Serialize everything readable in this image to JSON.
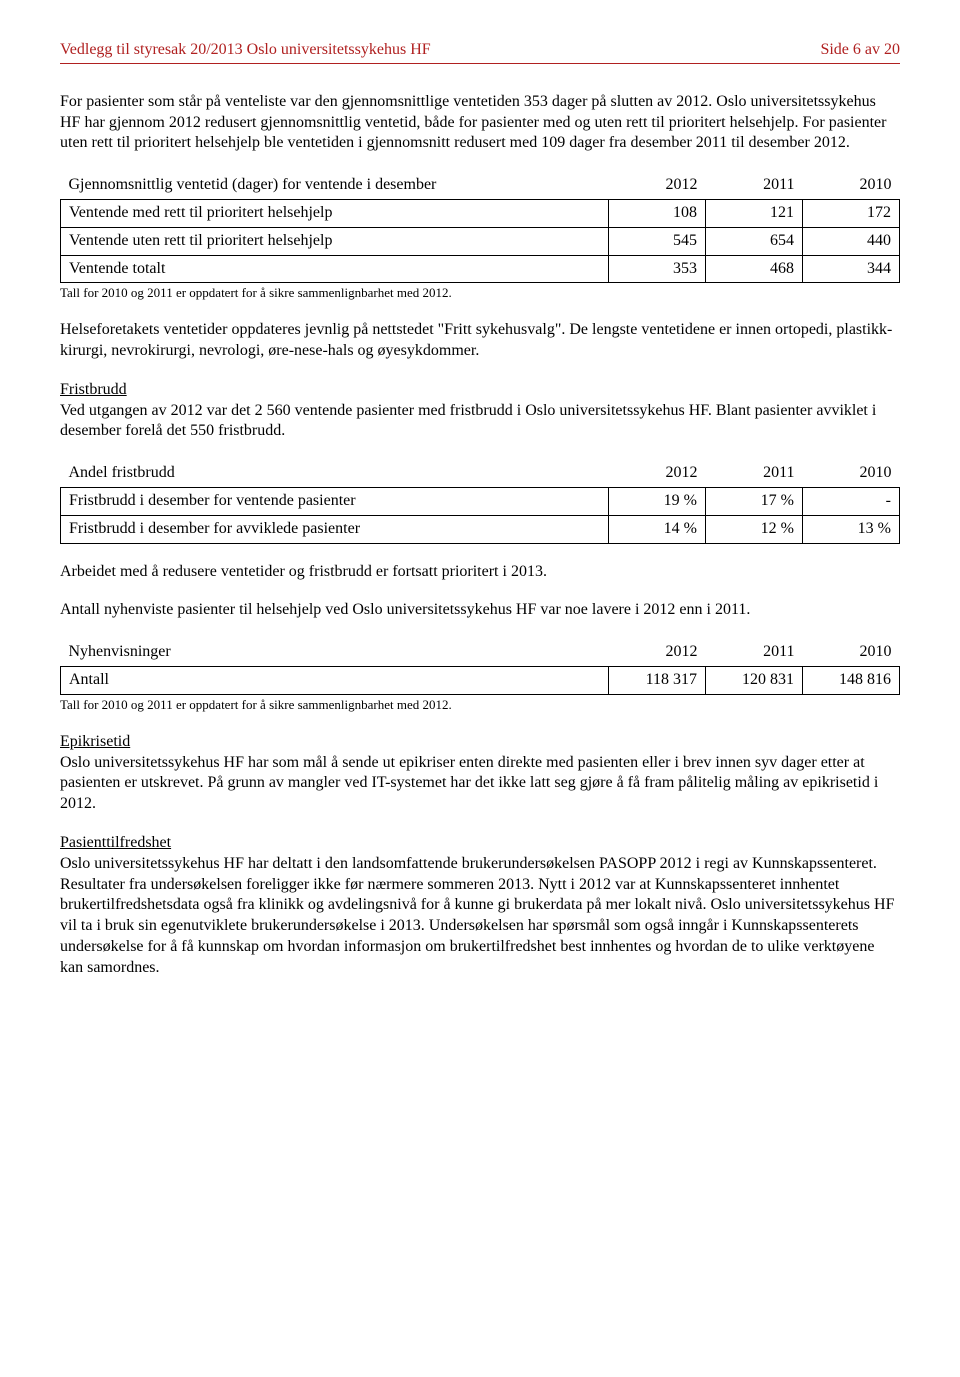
{
  "header": {
    "left": "Vedlegg til styresak 20/2013 Oslo universitetssykehus HF",
    "right": "Side 6 av 20"
  },
  "para1": "For pasienter som står på venteliste var den gjennomsnittlige ventetiden 353 dager på slutten av 2012. Oslo universitetssykehus HF har gjennom 2012 redusert gjennomsnittlig ventetid, både for pasienter med og uten rett til prioritert helsehjelp. For pasienter uten rett til prioritert helsehjelp ble ventetiden i gjennomsnitt redusert med 109 dager fra desember 2011 til desember 2012.",
  "table1": {
    "header": [
      "Gjennomsnittlig ventetid (dager) for ventende i desember",
      "2012",
      "2011",
      "2010"
    ],
    "rows": [
      [
        "Ventende med rett til prioritert helsehjelp",
        "108",
        "121",
        "172"
      ],
      [
        "Ventende uten rett til prioritert helsehjelp",
        "545",
        "654",
        "440"
      ],
      [
        "Ventende totalt",
        "353",
        "468",
        "344"
      ]
    ]
  },
  "footnote1": "Tall for 2010 og 2011 er oppdatert for å sikre sammenlignbarhet med 2012.",
  "para2": "Helseforetakets ventetider oppdateres jevnlig på nettstedet \"Fritt sykehusvalg\". De lengste ventetidene er innen ortopedi, plastikk-kirurgi, nevrokirurgi, nevrologi, øre-nese-hals og øyesykdommer.",
  "fristbrudd_heading": "Fristbrudd",
  "para3": "Ved utgangen av 2012 var det 2 560 ventende pasienter med fristbrudd i Oslo universitetssykehus HF. Blant pasienter avviklet i desember forelå det 550 fristbrudd.",
  "table2": {
    "header": [
      "Andel fristbrudd",
      "2012",
      "2011",
      "2010"
    ],
    "rows": [
      [
        "Fristbrudd i desember for ventende pasienter",
        "19 %",
        "17 %",
        "-"
      ],
      [
        "Fristbrudd i desember for avviklede pasienter",
        "14 %",
        "12 %",
        "13 %"
      ]
    ]
  },
  "para4": "Arbeidet med å redusere ventetider og fristbrudd er fortsatt prioritert i 2013.",
  "para5": "Antall nyhenviste pasienter til helsehjelp ved Oslo universitetssykehus HF var noe lavere i 2012 enn i 2011.",
  "table3": {
    "header": [
      "Nyhenvisninger",
      "2012",
      "2011",
      "2010"
    ],
    "rows": [
      [
        "Antall",
        "118 317",
        "120 831",
        "148 816"
      ]
    ]
  },
  "footnote2": "Tall for 2010 og 2011 er oppdatert for å sikre sammenlignbarhet med 2012.",
  "epikrisetid_heading": "Epikrisetid",
  "para6": "Oslo universitetssykehus HF har som mål å sende ut epikriser enten direkte med pasienten eller i brev innen syv dager etter at pasienten er utskrevet. På grunn av mangler ved IT-systemet har det ikke latt seg gjøre å få fram pålitelig måling av epikrisetid i 2012.",
  "pasient_heading": "Pasienttilfredshet",
  "para7": "Oslo universitetssykehus HF har deltatt i den landsomfattende brukerundersøkelsen PASOPP 2012 i regi av Kunnskapssenteret. Resultater fra undersøkelsen foreligger ikke før nærmere sommeren 2013. Nytt i 2012 var at Kunnskapssenteret innhentet brukertilfredshetsdata også fra klinikk og avdelingsnivå for å kunne gi brukerdata på mer lokalt nivå. Oslo universitetssykehus HF vil ta i bruk sin egenutviklete brukerundersøkelse i 2013. Undersøkelsen har spørsmål som også inngår i Kunnskapssenterets undersøkelse for å få kunnskap om hvordan informasjon om brukertilfredshet best innhentes og hvordan de to ulike verktøyene kan samordnes."
}
